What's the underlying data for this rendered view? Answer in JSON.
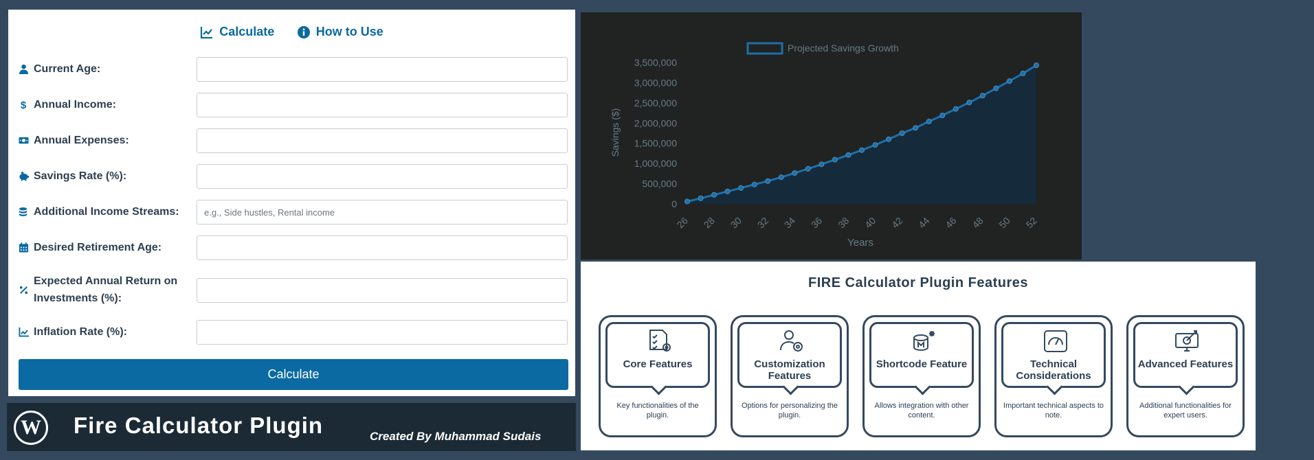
{
  "form": {
    "tabs": [
      {
        "label": "Calculate",
        "icon": "chart-line-icon"
      },
      {
        "label": "How to Use",
        "icon": "info-icon"
      }
    ],
    "fields": [
      {
        "label": "Current Age:",
        "icon": "user-icon",
        "value": "",
        "placeholder": ""
      },
      {
        "label": "Annual Income:",
        "icon": "dollar-icon",
        "value": "",
        "placeholder": ""
      },
      {
        "label": "Annual Expenses:",
        "icon": "money-bill-icon",
        "value": "",
        "placeholder": ""
      },
      {
        "label": "Savings Rate (%):",
        "icon": "piggy-bank-icon",
        "value": "",
        "placeholder": ""
      },
      {
        "label": "Additional Income Streams:",
        "icon": "coins-icon",
        "value": "",
        "placeholder": "e.g., Side hustles, Rental income"
      },
      {
        "label": "Desired Retirement Age:",
        "icon": "calendar-icon",
        "value": "",
        "placeholder": ""
      },
      {
        "label": "Expected Annual Return on Investments (%):",
        "icon": "percent-icon",
        "value": "",
        "placeholder": ""
      },
      {
        "label": "Inflation Rate (%):",
        "icon": "chart-line-icon",
        "value": "",
        "placeholder": ""
      }
    ],
    "button_label": "Calculate"
  },
  "banner": {
    "title": "Fire Calculator Plugin",
    "credit": "Created By Muhammad Sudais"
  },
  "chart_data": {
    "type": "area",
    "title": "",
    "legend": "Projected Savings Growth",
    "legend_position": "top",
    "xlabel": "Years",
    "ylabel": "Savings ($)",
    "x_ticks": [
      "26",
      "28",
      "30",
      "32",
      "34",
      "36",
      "38",
      "40",
      "42",
      "44",
      "46",
      "48",
      "50",
      "52"
    ],
    "y_ticks": [
      "0",
      "500,000",
      "1,000,000",
      "1,500,000",
      "2,000,000",
      "2,500,000",
      "3,000,000",
      "3,500,000"
    ],
    "ylim": [
      0,
      3500000
    ],
    "x": [
      26,
      27,
      28,
      29,
      30,
      31,
      32,
      33,
      34,
      35,
      36,
      37,
      38,
      39,
      40,
      41,
      42,
      43,
      44,
      45,
      46,
      47,
      48,
      49,
      50,
      51,
      52
    ],
    "values": [
      60000,
      140000,
      225000,
      310000,
      395000,
      480000,
      565000,
      660000,
      765000,
      870000,
      980000,
      1095000,
      1210000,
      1330000,
      1460000,
      1600000,
      1750000,
      1880000,
      2040000,
      2190000,
      2350000,
      2510000,
      2680000,
      2860000,
      3040000,
      3230000,
      3430000
    ],
    "colors": {
      "line": "#1e6fa8",
      "fill": "#152a3a",
      "text": "#6b7a87"
    },
    "grid": false
  },
  "features": {
    "title": "FIRE Calculator Plugin Features",
    "cards": [
      {
        "title": "Core Features",
        "desc": "Key functionalities of the plugin.",
        "icon": "checklist-gear-icon"
      },
      {
        "title": "Customization Features",
        "desc": "Options for personalizing the plugin.",
        "icon": "user-gear-icon"
      },
      {
        "title": "Shortcode Feature",
        "desc": "Allows integration with other content.",
        "icon": "shortcode-icon"
      },
      {
        "title": "Technical Considerations",
        "desc": "Important technical aspects to note.",
        "icon": "gauge-icon"
      },
      {
        "title": "Advanced Features",
        "desc": "Additional functionalities for expert users.",
        "icon": "monitor-target-icon"
      }
    ]
  }
}
